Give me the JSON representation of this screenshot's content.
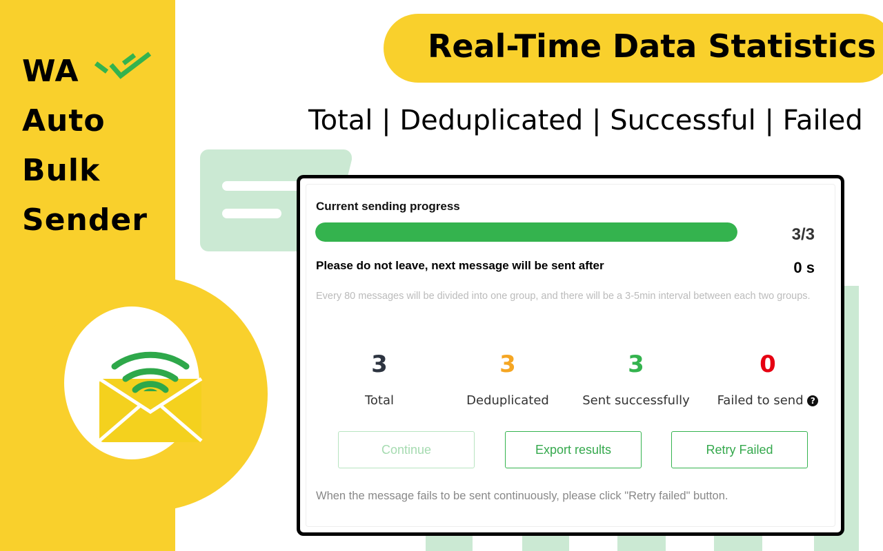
{
  "brand": {
    "lines": [
      "WA",
      "Auto",
      "Bulk",
      "Sender"
    ]
  },
  "header": {
    "title": "Real-Time Data Statistics",
    "subtitle": "Total | Deduplicated | Successful | Failed"
  },
  "panel": {
    "progress_label": "Current sending progress",
    "progress_value": "3/3",
    "progress_fraction": 1.0,
    "wait_label": "Please do not leave, next message will be sent after",
    "wait_value": "0 s",
    "note": "Every 80 messages will be divided into one group, and there will be a 3-5min interval between each two groups.",
    "stats": [
      {
        "value": "3",
        "label": "Total",
        "color": "#2d3440"
      },
      {
        "value": "3",
        "label": "Deduplicated",
        "color": "#f5a623"
      },
      {
        "value": "3",
        "label": "Sent successfully",
        "color": "#34b34e"
      },
      {
        "value": "0",
        "label": "Failed to send",
        "color": "#e60012"
      }
    ],
    "help_icon": "?",
    "buttons": {
      "continue": "Continue",
      "export": "Export results",
      "retry": "Retry Failed"
    },
    "footer": "When the message fails to be sent continuously, please click \"Retry failed\" button."
  },
  "colors": {
    "yellow": "#f9d02c",
    "green": "#34b34e",
    "light_green": "#cbe9d3"
  }
}
